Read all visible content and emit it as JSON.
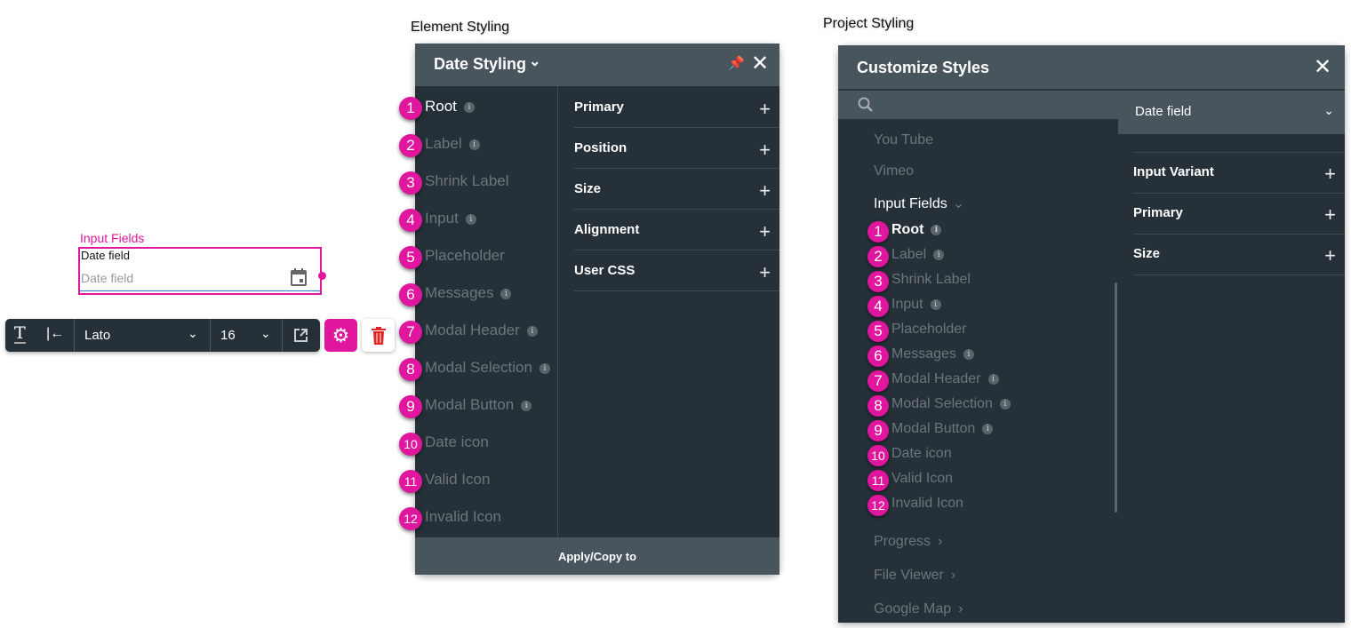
{
  "captions": {
    "element_styling": "Element Styling",
    "project_styling": "Project Styling"
  },
  "canvas": {
    "group_label": "Input Fields",
    "field_label": "Date field",
    "field_placeholder": "Date field",
    "icon": "calendar-icon"
  },
  "toolbar": {
    "font": "Lato",
    "size": "16",
    "icons": [
      "text-style-icon",
      "align-left-icon",
      "open-external-icon",
      "gear-icon",
      "trash-icon"
    ]
  },
  "element_panel": {
    "title": "Date Styling",
    "items": [
      {
        "n": "1",
        "label": "Root",
        "info": true
      },
      {
        "n": "2",
        "label": "Label",
        "info": true
      },
      {
        "n": "3",
        "label": "Shrink Label",
        "info": false
      },
      {
        "n": "4",
        "label": "Input",
        "info": true
      },
      {
        "n": "5",
        "label": "Placeholder",
        "info": false
      },
      {
        "n": "6",
        "label": "Messages",
        "info": true
      },
      {
        "n": "7",
        "label": "Modal Header",
        "info": true
      },
      {
        "n": "8",
        "label": "Modal Selection",
        "info": true
      },
      {
        "n": "9",
        "label": "Modal Button",
        "info": true
      },
      {
        "n": "10",
        "label": "Date icon",
        "info": false
      },
      {
        "n": "11",
        "label": "Valid Icon",
        "info": false
      },
      {
        "n": "12",
        "label": "Invalid Icon",
        "info": false
      }
    ],
    "sections": [
      "Primary",
      "Position",
      "Size",
      "Alignment",
      "User CSS"
    ],
    "footer": "Apply/Copy to"
  },
  "project_panel": {
    "title": "Customize Styles",
    "top_items": [
      "You Tube",
      "Vimeo"
    ],
    "group": "Input Fields",
    "items": [
      {
        "n": "1",
        "label": "Root",
        "info": true
      },
      {
        "n": "2",
        "label": "Label",
        "info": true
      },
      {
        "n": "3",
        "label": "Shrink Label",
        "info": false
      },
      {
        "n": "4",
        "label": "Input",
        "info": true
      },
      {
        "n": "5",
        "label": "Placeholder",
        "info": false
      },
      {
        "n": "6",
        "label": "Messages",
        "info": true
      },
      {
        "n": "7",
        "label": "Modal Header",
        "info": true
      },
      {
        "n": "8",
        "label": "Modal Selection",
        "info": true
      },
      {
        "n": "9",
        "label": "Modal Button",
        "info": true
      },
      {
        "n": "10",
        "label": "Date icon",
        "info": false
      },
      {
        "n": "11",
        "label": "Valid Icon",
        "info": false
      },
      {
        "n": "12",
        "label": "Invalid Icon",
        "info": false
      }
    ],
    "bottom_items": [
      "Progress",
      "File Viewer",
      "Google Map"
    ],
    "selector": "Date field",
    "sections": [
      "Input Variant",
      "Primary",
      "Size"
    ]
  },
  "colors": {
    "accent": "#e0169f",
    "panel_bg": "#263038",
    "panel_header": "#48555d",
    "muted_text": "#6c767c"
  }
}
